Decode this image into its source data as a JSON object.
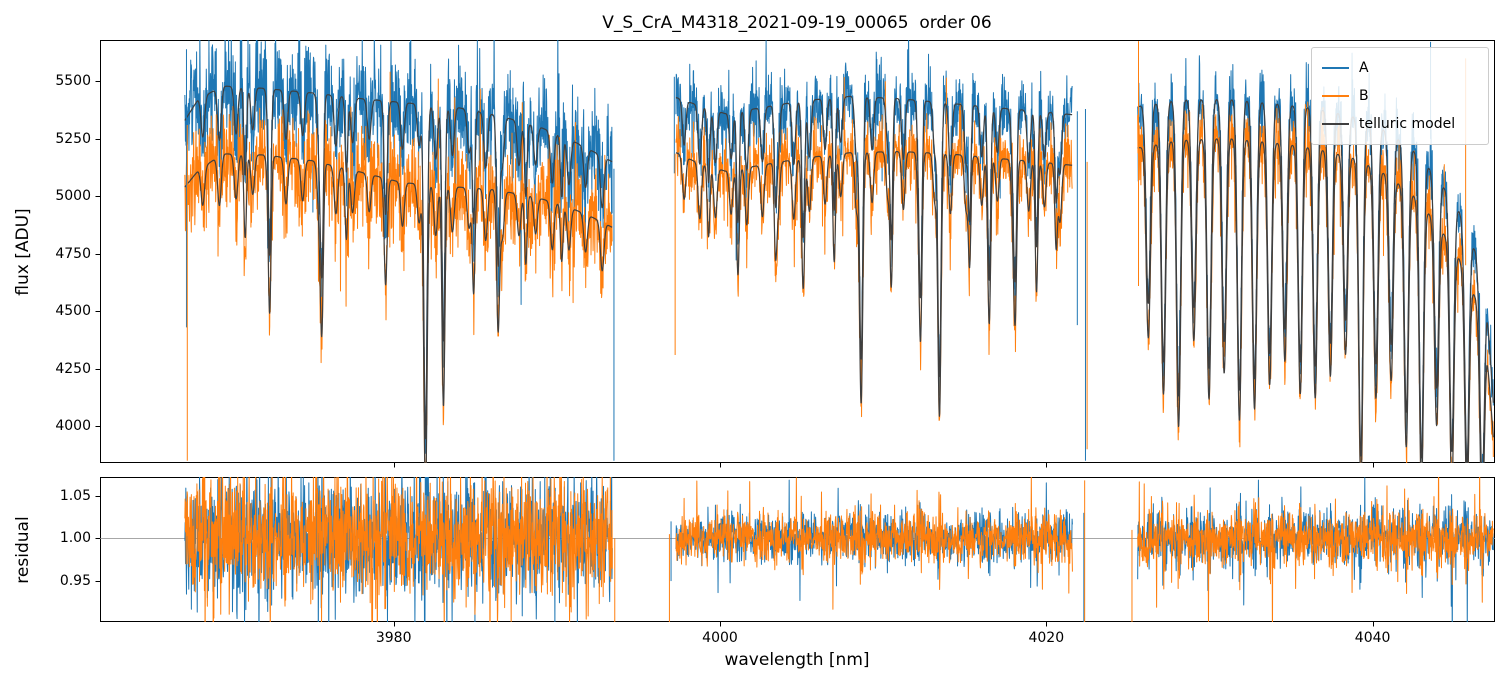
{
  "chart_data": {
    "type": "line",
    "title": "V_S_CrA_M4318_2021-09-19_00065  order 06",
    "xlabel": "wavelength [nm]",
    "xlim": [
      3962.0,
      4047.5
    ],
    "xticks": [
      [
        3980,
        "3980"
      ],
      [
        4000,
        "4000"
      ],
      [
        4020,
        "4020"
      ],
      [
        4040,
        "4040"
      ]
    ],
    "panels": [
      {
        "name": "flux",
        "ylabel": "flux [ADU]",
        "ylim": [
          3840,
          5680
        ],
        "yticks": [
          [
            4000,
            "4000"
          ],
          [
            4250,
            "4250"
          ],
          [
            4500,
            "4500"
          ],
          [
            4750,
            "4750"
          ],
          [
            5000,
            "5000"
          ],
          [
            5250,
            "5250"
          ],
          [
            5500,
            "5500"
          ]
        ]
      },
      {
        "name": "residual",
        "ylabel": "residual",
        "ylim": [
          0.902,
          1.072
        ],
        "yticks": [
          [
            0.95,
            "0.95"
          ],
          [
            1.0,
            "1.00"
          ],
          [
            1.05,
            "1.05"
          ]
        ],
        "axhline": 1.0
      }
    ],
    "legend": [
      {
        "label": "A",
        "color": "#1f77b4"
      },
      {
        "label": "B",
        "color": "#ff7f0e"
      },
      {
        "label": "telluric model",
        "color": "#3f3f3f"
      }
    ],
    "colors": {
      "A": "#1f77b4",
      "B": "#ff7f0e",
      "model": "#3f3f3f",
      "axhline": "#8a8a8a"
    },
    "segments": [
      {
        "range": [
          3967.2,
          3993.4
        ],
        "contA": [
          [
            3967.2,
            5330
          ],
          [
            3968.0,
            5420
          ],
          [
            3969.5,
            5480
          ],
          [
            3972,
            5470
          ],
          [
            3975,
            5450
          ],
          [
            3978,
            5425
          ],
          [
            3981,
            5405
          ],
          [
            3984,
            5385
          ],
          [
            3986.5,
            5350
          ],
          [
            3989,
            5300
          ],
          [
            3991,
            5240
          ],
          [
            3992.5,
            5185
          ],
          [
            3993.4,
            5150
          ]
        ],
        "contB": [
          [
            3967.2,
            5040
          ],
          [
            3968.0,
            5110
          ],
          [
            3969.5,
            5185
          ],
          [
            3972,
            5180
          ],
          [
            3975,
            5155
          ],
          [
            3978,
            5105
          ],
          [
            3980.5,
            5060
          ],
          [
            3983,
            5045
          ],
          [
            3986,
            5030
          ],
          [
            3988.5,
            5000
          ],
          [
            3990.5,
            4960
          ],
          [
            3992,
            4915
          ],
          [
            3993.4,
            4865
          ]
        ],
        "comb": {
          "start": 3968.3,
          "spacing": 1.02,
          "depth": 0.04,
          "width": 0.11
        },
        "lines": [
          [
            3970.9,
            0.07,
            0.08
          ],
          [
            3972.4,
            0.09,
            0.08
          ],
          [
            3975.6,
            0.13,
            0.09
          ],
          [
            3977.1,
            0.06,
            0.08
          ],
          [
            3979.5,
            0.05,
            0.08
          ],
          [
            3981.95,
            0.27,
            0.1
          ],
          [
            3983.05,
            0.19,
            0.09
          ],
          [
            3984.9,
            0.09,
            0.08
          ],
          [
            3986.4,
            0.12,
            0.09
          ],
          [
            3988.1,
            0.06,
            0.08
          ],
          [
            3990.3,
            0.05,
            0.08
          ]
        ],
        "noise_flux": 0.021,
        "noise_resid": 0.033
      },
      {
        "range": [
          3997.3,
          4021.6
        ],
        "contA": [
          [
            3997.3,
            5430
          ],
          [
            3998.5,
            5400
          ],
          [
            4000.3,
            5360
          ],
          [
            4002.5,
            5385
          ],
          [
            4005,
            5415
          ],
          [
            4008,
            5435
          ],
          [
            4011,
            5425
          ],
          [
            4014,
            5405
          ],
          [
            4017,
            5385
          ],
          [
            4019.5,
            5370
          ],
          [
            4021.6,
            5355
          ]
        ],
        "contB": [
          [
            3997.3,
            5190
          ],
          [
            3998.5,
            5150
          ],
          [
            4000.3,
            5110
          ],
          [
            4002.5,
            5135
          ],
          [
            4005,
            5165
          ],
          [
            4008,
            5190
          ],
          [
            4011,
            5195
          ],
          [
            4014,
            5185
          ],
          [
            4017,
            5165
          ],
          [
            4019.5,
            5150
          ],
          [
            4021.6,
            5135
          ]
        ],
        "comb": {
          "start": 3997.8,
          "spacing": 0.96,
          "depth": 0.045,
          "width": 0.1
        },
        "lines": [
          [
            3999.3,
            0.06,
            0.08
          ],
          [
            4001.1,
            0.09,
            0.08
          ],
          [
            4003.4,
            0.07,
            0.08
          ],
          [
            4005.1,
            0.11,
            0.09
          ],
          [
            4007.0,
            0.09,
            0.08
          ],
          [
            4008.65,
            0.21,
            0.1
          ],
          [
            4010.5,
            0.11,
            0.08
          ],
          [
            4012.3,
            0.13,
            0.09
          ],
          [
            4013.45,
            0.22,
            0.1
          ],
          [
            4015.3,
            0.09,
            0.08
          ],
          [
            4016.5,
            0.14,
            0.09
          ],
          [
            4018.1,
            0.12,
            0.09
          ],
          [
            4019.4,
            0.11,
            0.08
          ],
          [
            4020.6,
            0.07,
            0.08
          ]
        ],
        "noise_flux": 0.014,
        "noise_resid": 0.013
      },
      {
        "range": [
          4025.6,
          4047.4
        ],
        "contA": [
          [
            4025.6,
            5390
          ],
          [
            4028,
            5420
          ],
          [
            4031,
            5425
          ],
          [
            4034,
            5405
          ],
          [
            4036.5,
            5385
          ],
          [
            4039,
            5345
          ],
          [
            4041,
            5280
          ],
          [
            4042.5,
            5200
          ],
          [
            4044,
            5080
          ],
          [
            4045.3,
            4935
          ],
          [
            4046.3,
            4760
          ],
          [
            4047.0,
            4520
          ],
          [
            4047.4,
            4100
          ]
        ],
        "contB": [
          [
            4025.6,
            5210
          ],
          [
            4028,
            5245
          ],
          [
            4031,
            5255
          ],
          [
            4034,
            5235
          ],
          [
            4036.5,
            5210
          ],
          [
            4039,
            5165
          ],
          [
            4041,
            5090
          ],
          [
            4042.5,
            5005
          ],
          [
            4044,
            4880
          ],
          [
            4045.3,
            4730
          ],
          [
            4046.3,
            4560
          ],
          [
            4047.0,
            4330
          ],
          [
            4047.4,
            3950
          ]
        ],
        "comb": {
          "start": 4026.25,
          "spacing": 0.93,
          "depth": 0.2,
          "width": 0.13
        },
        "lines": [
          [
            4028.1,
            0.05,
            0.12
          ],
          [
            4031.85,
            0.06,
            0.12
          ],
          [
            4035.6,
            0.05,
            0.12
          ],
          [
            4039.3,
            0.06,
            0.12
          ],
          [
            4043.0,
            0.05,
            0.12
          ],
          [
            4044.85,
            0.06,
            0.12
          ]
        ],
        "noise_flux": 0.014,
        "noise_resid": 0.013
      }
    ],
    "edge_spikes_flux": [
      {
        "s": "A",
        "x": 3967.3,
        "y0": 4430,
        "y1": 5640
      },
      {
        "s": "B",
        "x": 3967.35,
        "y0": 3850,
        "y1": 5310
      },
      {
        "s": "A",
        "x": 3993.5,
        "y0": 3850,
        "y1": 5120
      },
      {
        "s": "A",
        "x": 3997.2,
        "y0": 5100,
        "y1": 5520
      },
      {
        "s": "B",
        "x": 3997.25,
        "y0": 4310,
        "y1": 5185
      },
      {
        "s": "A",
        "x": 4021.9,
        "y0": 4440,
        "y1": 5370
      },
      {
        "s": "A",
        "x": 4022.4,
        "y0": 3850,
        "y1": 5380
      },
      {
        "s": "B",
        "x": 4022.5,
        "y0": 3900,
        "y1": 5150
      },
      {
        "s": "B",
        "x": 4025.65,
        "y0": 4610,
        "y1": 5675
      },
      {
        "s": "A",
        "x": 4043.55,
        "y0": 5250,
        "y1": 5672
      },
      {
        "s": "B",
        "x": 4045.7,
        "y0": 4700,
        "y1": 5600
      }
    ],
    "edge_spikes_resid": [
      {
        "s": "B",
        "x": 3993.55,
        "y0": 0.862,
        "y1": 1.0
      },
      {
        "s": "B",
        "x": 3996.9,
        "y0": 0.862,
        "y1": 1.005
      },
      {
        "s": "A",
        "x": 3997.0,
        "y0": 0.95,
        "y1": 1.02
      },
      {
        "s": "A",
        "x": 4022.3,
        "y0": 0.9,
        "y1": 1.03
      },
      {
        "s": "B",
        "x": 4022.35,
        "y0": 0.862,
        "y1": 1.068
      },
      {
        "s": "B",
        "x": 4025.25,
        "y0": 0.893,
        "y1": 1.01
      }
    ]
  }
}
